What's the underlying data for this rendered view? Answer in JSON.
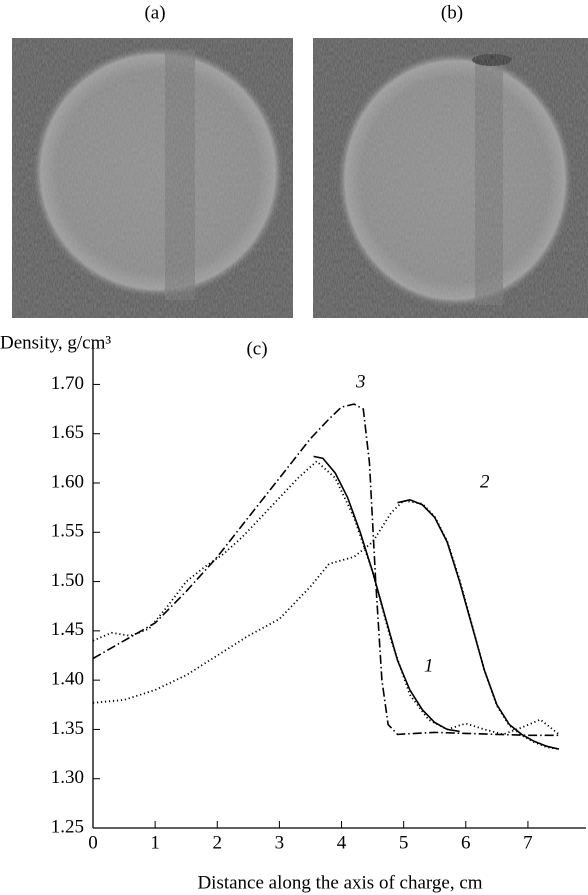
{
  "panels": [
    "(a)",
    "(b)"
  ],
  "chart_data": {
    "type": "line",
    "title": "(c)",
    "y_label": "Density, g/cm³",
    "x_label": "Distance along the axis of charge, cm",
    "xlim": [
      0,
      7.5
    ],
    "xticks": [
      0,
      1,
      2,
      3,
      4,
      5,
      6,
      7
    ],
    "ylim": [
      1.25,
      1.74
    ],
    "yticks": [
      1.25,
      {
        "value": 1.3,
        "label": "1.30"
      },
      1.35,
      {
        "value": 1.4,
        "label": "1.40"
      },
      1.45,
      {
        "value": 1.5,
        "label": "1.50"
      },
      1.55,
      {
        "value": 1.6,
        "label": "1.60"
      },
      1.65,
      {
        "value": 1.7,
        "label": "1.70"
      }
    ],
    "series": [
      {
        "name": "1",
        "color": "#000000",
        "style": "solid",
        "x": [
          3.55,
          3.7,
          3.9,
          4.1,
          4.3,
          4.5,
          4.7,
          4.9,
          5.1,
          5.3,
          5.5,
          5.7,
          5.9
        ],
        "values": [
          1.627,
          1.625,
          1.61,
          1.585,
          1.55,
          1.51,
          1.465,
          1.42,
          1.39,
          1.37,
          1.357,
          1.35,
          1.348
        ]
      },
      {
        "color": "#000000",
        "style": "dotted",
        "x": [
          0,
          0.3,
          0.6,
          0.9,
          1.2,
          1.5,
          1.8,
          2.1,
          2.4,
          2.7,
          3.0,
          3.3,
          3.6,
          3.9,
          4.2,
          4.5,
          4.8,
          5.1,
          5.4,
          5.7,
          6.0,
          6.3,
          6.6,
          6.9,
          7.2,
          7.5
        ],
        "values": [
          1.44,
          1.448,
          1.445,
          1.452,
          1.475,
          1.5,
          1.515,
          1.528,
          1.545,
          1.565,
          1.585,
          1.605,
          1.622,
          1.605,
          1.565,
          1.51,
          1.44,
          1.385,
          1.36,
          1.35,
          1.356,
          1.35,
          1.345,
          1.352,
          1.36,
          1.345
        ]
      },
      {
        "name": "2",
        "color": "#000000",
        "style": "solid",
        "x": [
          4.9,
          5.1,
          5.3,
          5.5,
          5.7,
          5.9,
          6.1,
          6.3,
          6.5,
          6.7,
          6.9,
          7.1,
          7.3,
          7.5
        ],
        "values": [
          1.58,
          1.583,
          1.578,
          1.565,
          1.54,
          1.5,
          1.455,
          1.41,
          1.375,
          1.355,
          1.345,
          1.338,
          1.333,
          1.33
        ]
      },
      {
        "color": "#000000",
        "style": "dotted",
        "x": [
          0,
          0.5,
          1,
          1.5,
          2,
          2.5,
          3,
          3.5,
          3.8,
          4.2,
          4.5,
          4.8,
          5.0,
          5.3,
          5.5,
          5.7,
          5.9,
          6.1,
          6.3,
          6.5,
          6.7,
          6.9,
          7.1,
          7.3,
          7.5
        ],
        "values": [
          1.377,
          1.38,
          1.39,
          1.405,
          1.425,
          1.445,
          1.462,
          1.495,
          1.518,
          1.525,
          1.54,
          1.57,
          1.582,
          1.579,
          1.566,
          1.541,
          1.502,
          1.456,
          1.41,
          1.374,
          1.354,
          1.344,
          1.337,
          1.332,
          1.33
        ]
      },
      {
        "name": "3",
        "color": "#000000",
        "style": "dashdot",
        "x": [
          0,
          0.5,
          1,
          1.5,
          2,
          2.5,
          3,
          3.5,
          3.8,
          4.0,
          4.2,
          4.35,
          4.45,
          4.55,
          4.65,
          4.75,
          4.9,
          5.5,
          6,
          6.5,
          7,
          7.5
        ],
        "values": [
          1.422,
          1.44,
          1.458,
          1.49,
          1.525,
          1.565,
          1.605,
          1.645,
          1.665,
          1.677,
          1.68,
          1.675,
          1.62,
          1.5,
          1.4,
          1.355,
          1.345,
          1.347,
          1.346,
          1.345,
          1.344,
          1.344
        ]
      }
    ]
  }
}
